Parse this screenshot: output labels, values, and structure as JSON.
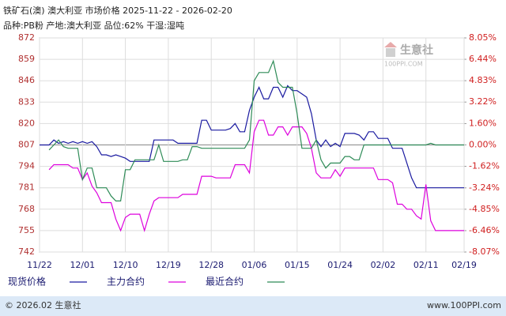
{
  "chart_data": {
    "type": "line",
    "title": "铁矿石(澳) 澳大利亚 市场价格 2025-11-22 - 2026-02-20",
    "subtitle": "品种:PB粉 产地:澳大利亚 品位:62% 干湿:湿吨",
    "watermark": "生意社",
    "watermark_sub": "100PPI.COM",
    "footer_left": "© 2026.02 生意社",
    "footer_right": "www.100PPI.com",
    "categories": [
      "11/22",
      null,
      null,
      null,
      null,
      null,
      null,
      null,
      null,
      "12/01",
      null,
      null,
      null,
      null,
      null,
      null,
      null,
      null,
      "12/10",
      null,
      null,
      null,
      null,
      null,
      null,
      null,
      null,
      "12/19",
      null,
      null,
      null,
      null,
      null,
      null,
      null,
      null,
      "12/28",
      null,
      null,
      null,
      null,
      null,
      null,
      null,
      null,
      "01/06",
      null,
      null,
      null,
      null,
      null,
      null,
      null,
      null,
      "01/15",
      null,
      null,
      null,
      null,
      null,
      null,
      null,
      null,
      "01/24",
      null,
      null,
      null,
      null,
      null,
      null,
      null,
      null,
      "02/02",
      null,
      null,
      null,
      null,
      null,
      null,
      null,
      null,
      "02/11",
      null,
      null,
      null,
      null,
      null,
      null,
      null,
      "02/19"
    ],
    "series": [
      {
        "name": "现货价格",
        "color": "#1a1aa0",
        "values": [
          807,
          807,
          807,
          810,
          808,
          809,
          808,
          809,
          808,
          809,
          808,
          809,
          806,
          801,
          801,
          800,
          801,
          800,
          799,
          797,
          797,
          797,
          797,
          797,
          810,
          810,
          810,
          810,
          810,
          808,
          808,
          808,
          808,
          808,
          822,
          822,
          816,
          816,
          816,
          816,
          817,
          820,
          815,
          815,
          828,
          836,
          842,
          835,
          835,
          842,
          842,
          836,
          843,
          840,
          840,
          838,
          836,
          826,
          810,
          806,
          810,
          806,
          808,
          806,
          814,
          814,
          814,
          813,
          810,
          815,
          815,
          811,
          811,
          811,
          805,
          805,
          805,
          796,
          787,
          781,
          781,
          781,
          781,
          781,
          781,
          781,
          781,
          781,
          781,
          781
        ]
      },
      {
        "name": "主力合约",
        "color": "#dd00dd",
        "values": [
          null,
          null,
          792,
          795,
          795,
          795,
          795,
          793,
          793,
          786,
          790,
          782,
          778,
          772,
          772,
          772,
          762,
          755,
          763,
          765,
          765,
          765,
          755,
          765,
          773,
          775,
          775,
          775,
          775,
          775,
          777,
          777,
          777,
          777,
          788,
          788,
          788,
          787,
          787,
          787,
          787,
          795,
          795,
          795,
          790,
          815,
          822,
          822,
          813,
          813,
          818,
          818,
          813,
          818,
          818,
          818,
          814,
          805,
          790,
          787,
          787,
          787,
          792,
          788,
          793,
          793,
          793,
          793,
          793,
          793,
          793,
          786,
          786,
          786,
          784,
          771,
          771,
          768,
          768,
          764,
          762,
          783,
          761,
          755,
          755,
          755,
          755,
          755,
          755,
          755
        ]
      },
      {
        "name": "最近合约",
        "color": "#2e8b57",
        "values": [
          null,
          null,
          804,
          807,
          810,
          806,
          805,
          805,
          805,
          786,
          793,
          793,
          781,
          781,
          781,
          776,
          773,
          773,
          792,
          792,
          798,
          798,
          798,
          798,
          798,
          807,
          797,
          797,
          797,
          797,
          798,
          798,
          806,
          806,
          805,
          805,
          805,
          805,
          805,
          805,
          805,
          805,
          805,
          805,
          810,
          846,
          851,
          851,
          851,
          858,
          845,
          842,
          842,
          842,
          826,
          805,
          805,
          805,
          810,
          798,
          793,
          796,
          796,
          796,
          800,
          800,
          798,
          798,
          807,
          807,
          807,
          807,
          807,
          807,
          807,
          807,
          807,
          807,
          807,
          807,
          807,
          807,
          808,
          807,
          807,
          807,
          807,
          807,
          807,
          807
        ]
      }
    ],
    "ylim": [
      742,
      872
    ],
    "yticks": [
      742,
      755,
      768,
      781,
      794,
      807,
      820,
      833,
      846,
      859,
      872
    ],
    "y2lim": [
      -8.07,
      8.05
    ],
    "y2ticks": [
      {
        "value": -8.07,
        "label": "-8.07%"
      },
      {
        "value": -6.46,
        "label": "-6.46%"
      },
      {
        "value": -4.85,
        "label": "-4.85%"
      },
      {
        "value": -3.24,
        "label": "-3.24%"
      },
      {
        "value": -1.62,
        "label": "-1.62%"
      },
      {
        "value": 0,
        "label": "0.00%"
      },
      {
        "value": 1.6,
        "label": "1.60%"
      },
      {
        "value": 3.22,
        "label": "3.22%"
      },
      {
        "value": 4.83,
        "label": "4.83%"
      },
      {
        "value": 6.44,
        "label": "6.44%"
      },
      {
        "value": 8.05,
        "label": "8.05%"
      }
    ],
    "grid": true
  }
}
